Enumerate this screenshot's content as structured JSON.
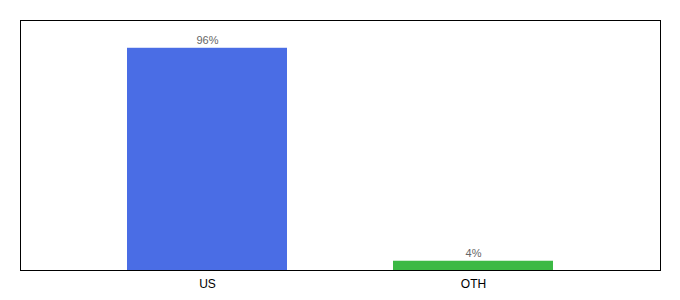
{
  "chart_data": {
    "type": "bar",
    "categories": [
      "US",
      "OTH"
    ],
    "values": [
      96,
      4
    ],
    "value_labels": [
      "96%",
      "4%"
    ],
    "colors": [
      "#4a6de5",
      "#3cb944"
    ],
    "ylim": [
      0,
      108
    ],
    "data_labels": true,
    "tick_labels": "x",
    "grid": false
  }
}
